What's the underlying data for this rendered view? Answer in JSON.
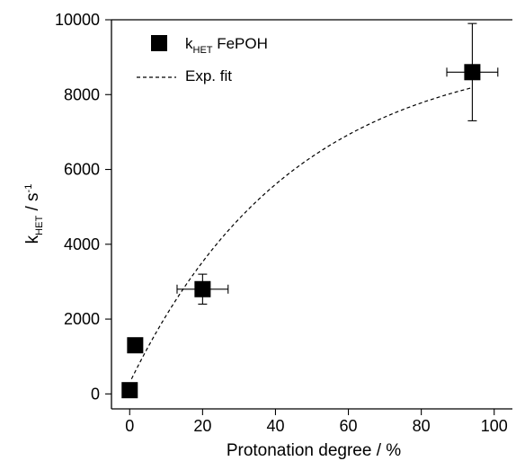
{
  "chart_data": {
    "type": "scatter",
    "xlabel": "Protonation degree / %",
    "ylabel": {
      "base": "k",
      "subscript": "HET",
      "separator": " / s",
      "superscript": "-1"
    },
    "xlim": [
      -5,
      105
    ],
    "ylim": [
      -400,
      10000
    ],
    "x_ticks": [
      {
        "value": 0,
        "label": "0"
      },
      {
        "value": 20,
        "label": "20"
      },
      {
        "value": 40,
        "label": "40"
      },
      {
        "value": 60,
        "label": "60"
      },
      {
        "value": 80,
        "label": "80"
      },
      {
        "value": 100,
        "label": "100"
      }
    ],
    "y_ticks": [
      {
        "value": 0,
        "label": "0"
      },
      {
        "value": 2000,
        "label": "2000"
      },
      {
        "value": 4000,
        "label": "4000"
      },
      {
        "value": 6000,
        "label": "6000"
      },
      {
        "value": 8000,
        "label": "8000"
      },
      {
        "value": 10000,
        "label": "10000"
      }
    ],
    "series": [
      {
        "name": "k_HET FePOH",
        "marker": "square",
        "color": "#000000",
        "points": [
          {
            "x": 0,
            "y": 100
          },
          {
            "x": 1.5,
            "y": 1300
          },
          {
            "x": 20,
            "y": 2800,
            "xerr": 7,
            "yerr": 400
          },
          {
            "x": 94,
            "y": 8600,
            "xerr": 7,
            "yerr": 1300
          }
        ]
      },
      {
        "name": "Exp. fit",
        "style": "dashed",
        "color": "#000000",
        "fit": {
          "form": "y = A(1 - exp(-x/t)) + y0",
          "A": 9000,
          "t": 45,
          "y0": 300,
          "x_range": [
            0.5,
            94
          ]
        }
      }
    ],
    "legend": {
      "position": "top-left",
      "marker_entry": {
        "base": "k",
        "subscript": "HET",
        "suffix": " FePOH"
      },
      "line_entry": "Exp. fit"
    },
    "grid": false
  }
}
